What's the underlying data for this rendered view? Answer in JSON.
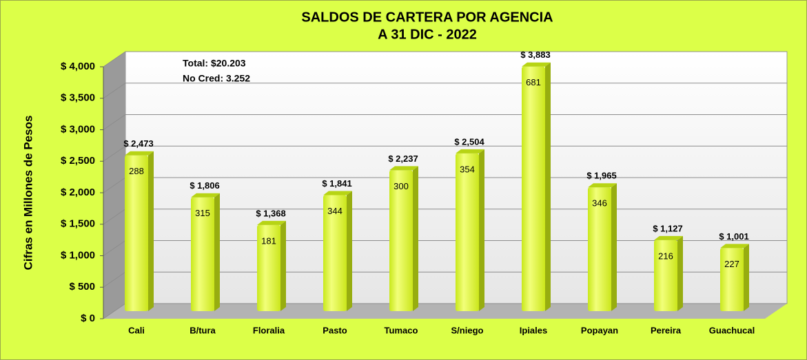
{
  "chart_data": {
    "type": "bar",
    "title": "SALDOS DE CARTERA POR AGENCIA",
    "subtitle": "A 31 DIC - 2022",
    "y_axis_label": "Cifras en Millones de Pesos",
    "annotations": [
      "Total: $20.203",
      "No Cred: 3.252"
    ],
    "categories": [
      "Cali",
      "B/tura",
      "Floralia",
      "Pasto",
      "Tumaco",
      "S/niego",
      "Ipiales",
      "Popayan",
      "Pereira",
      "Guachucal"
    ],
    "values": [
      2473,
      1806,
      1368,
      1841,
      2237,
      2504,
      3883,
      1965,
      1127,
      1001
    ],
    "value_labels": [
      "$ 2,473",
      "$ 1,806",
      "$ 1,368",
      "$ 1,841",
      "$ 2,237",
      "$ 2,504",
      "$ 3,883",
      "$ 1,965",
      "$ 1,127",
      "$ 1,001"
    ],
    "inner_labels": [
      288,
      315,
      181,
      344,
      300,
      354,
      681,
      346,
      216,
      227
    ],
    "color": "#ddff22",
    "ylim": [
      0,
      4000
    ],
    "yticks": [
      {
        "value": 0,
        "label": "$ 0"
      },
      {
        "value": 500,
        "label": "$ 500"
      },
      {
        "value": 1000,
        "label": "$ 1,000"
      },
      {
        "value": 1500,
        "label": "$ 1,500"
      },
      {
        "value": 2000,
        "label": "$ 2,000"
      },
      {
        "value": 2500,
        "label": "$ 2,500"
      },
      {
        "value": 3000,
        "label": "$ 3,000"
      },
      {
        "value": 3500,
        "label": "$ 3,500"
      },
      {
        "value": 4000,
        "label": "$ 4,000"
      }
    ],
    "grid": true
  }
}
